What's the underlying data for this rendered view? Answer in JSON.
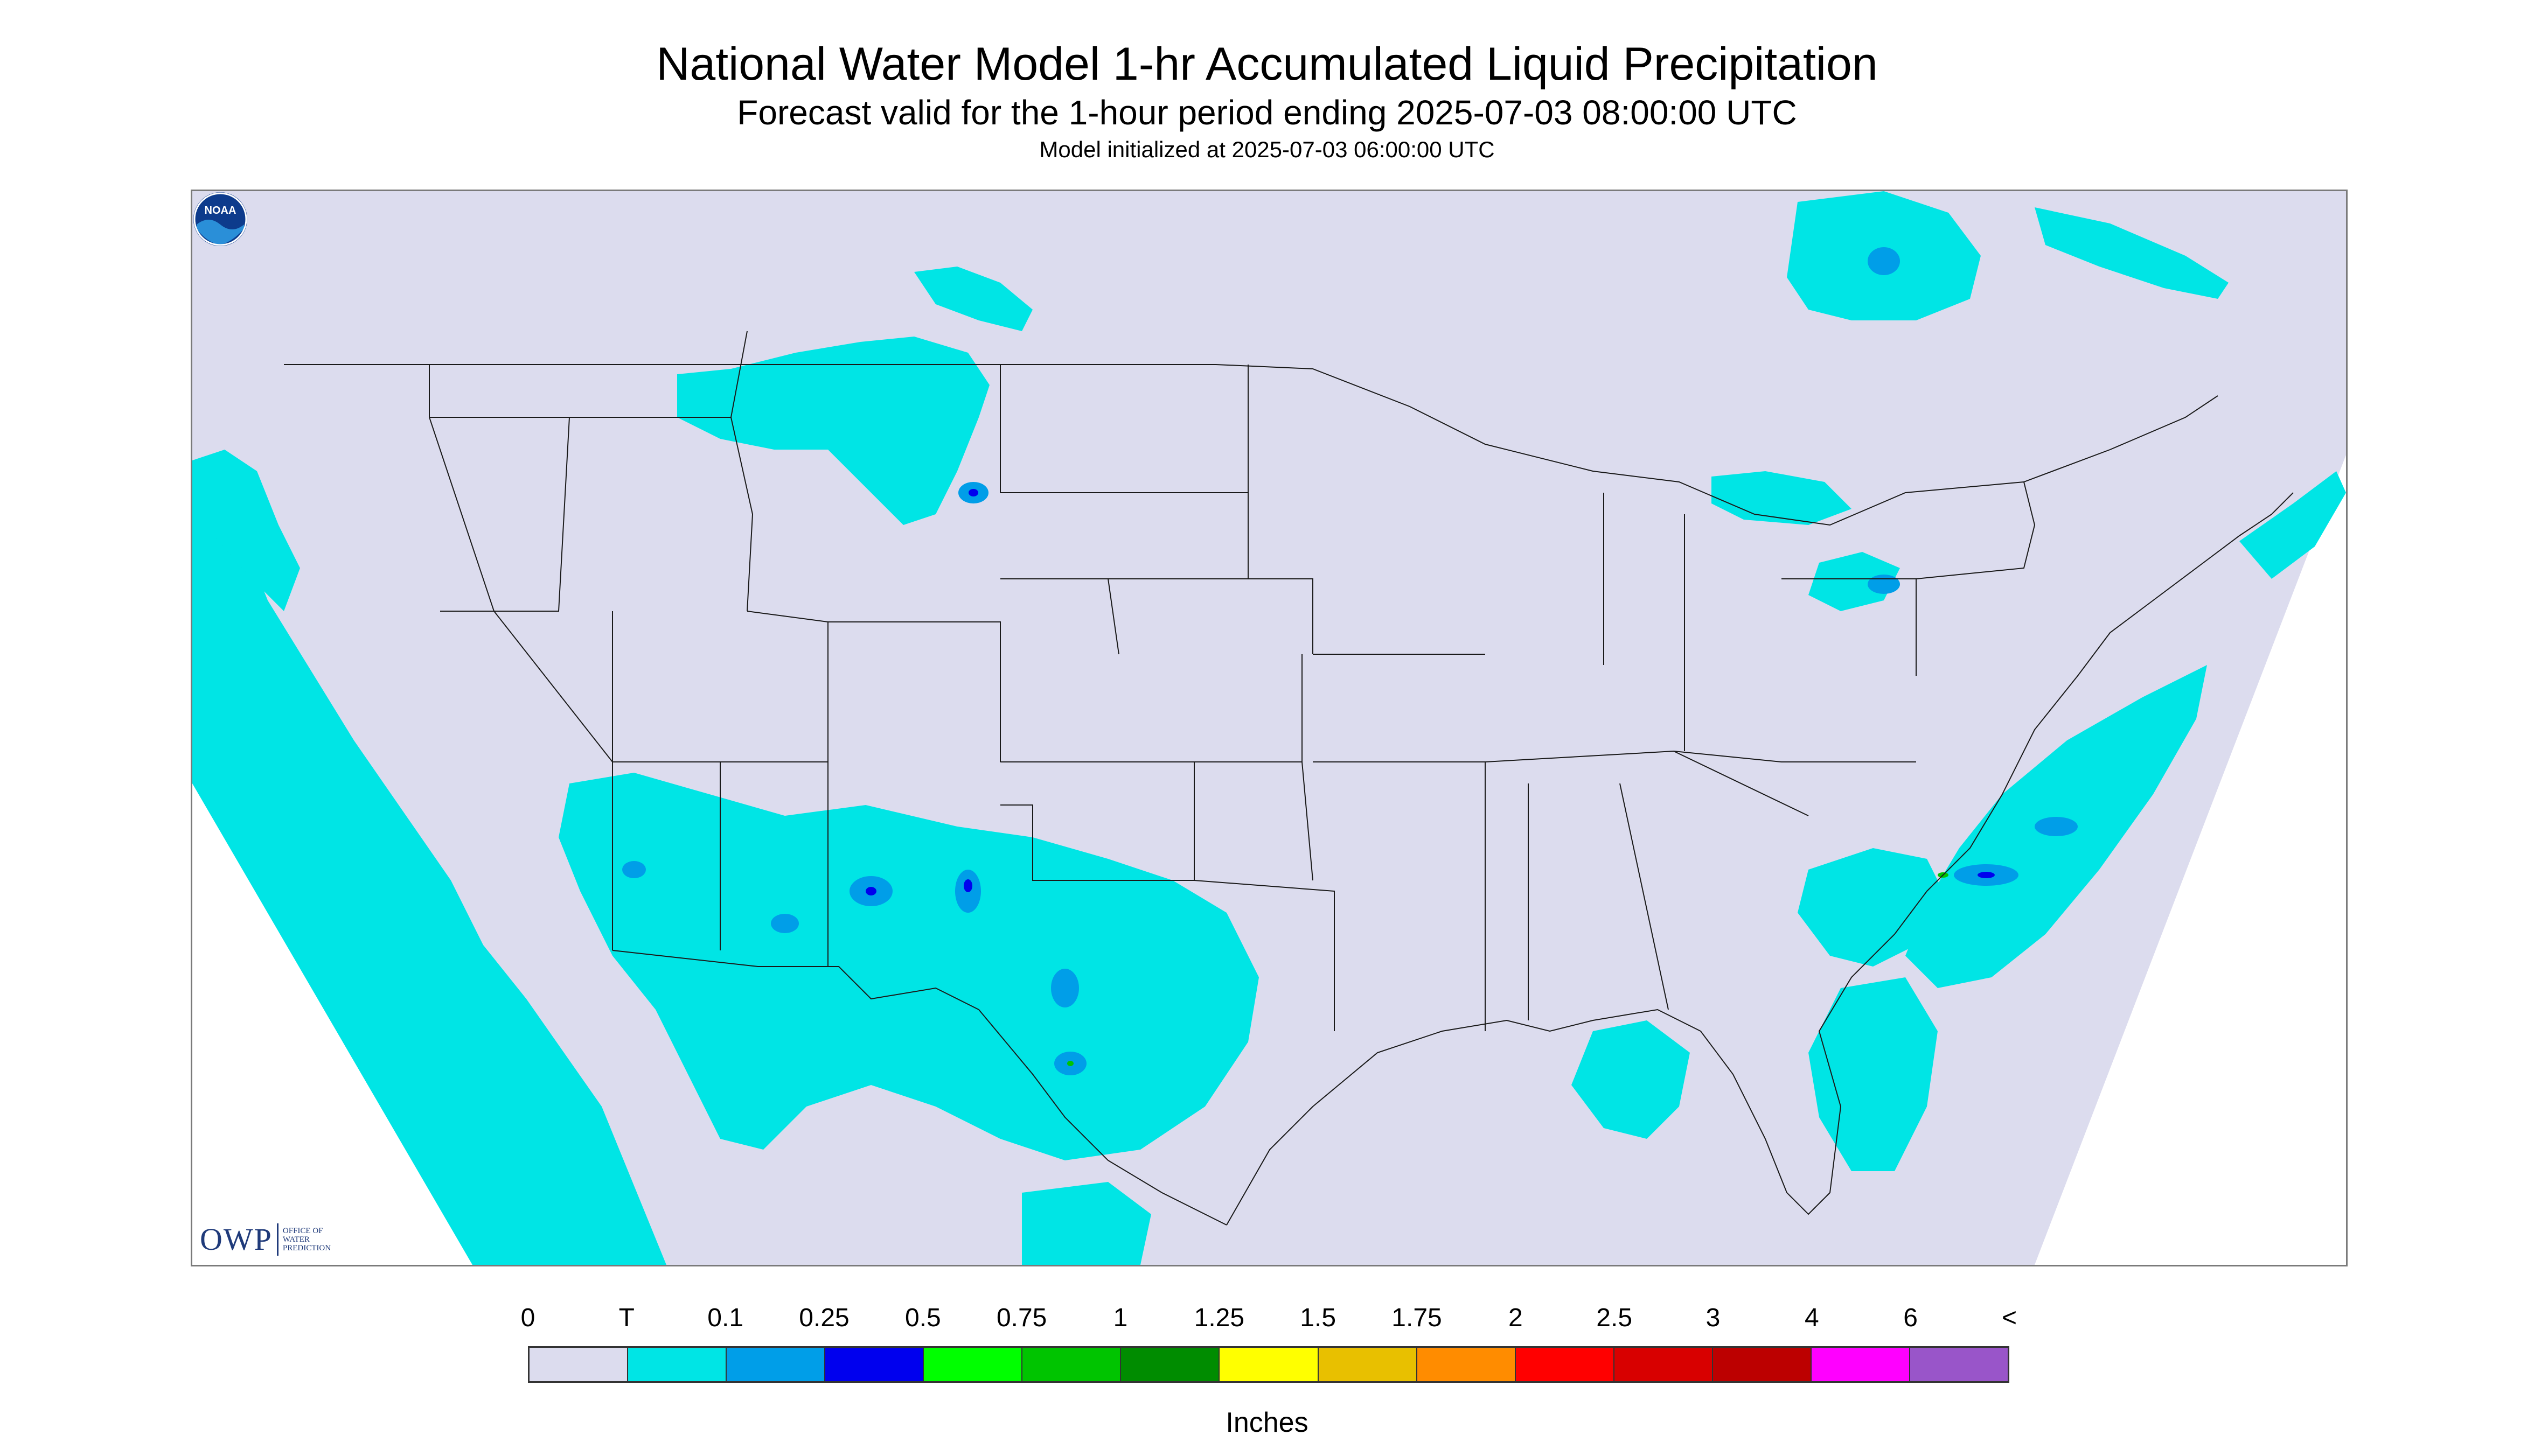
{
  "header": {
    "title": "National Water Model 1-hr Accumulated Liquid Precipitation",
    "subtitle": "Forecast valid for the 1-hour period ending 2025-07-03 08:00:00 UTC",
    "init": "Model initialized at 2025-07-03 06:00:00 UTC"
  },
  "logos": {
    "owp_letters": "OWP",
    "owp_line1": "OFFICE OF",
    "owp_line2": "WATER",
    "owp_line3": "PREDICTION",
    "noaa": "NOAA"
  },
  "legend": {
    "labels": [
      "0",
      "T",
      "0.1",
      "0.25",
      "0.5",
      "0.75",
      "1",
      "1.25",
      "1.5",
      "1.75",
      "2",
      "2.5",
      "3",
      "4",
      "6",
      "<"
    ],
    "colors": [
      "#dcdcee",
      "#00e5e5",
      "#009ee8",
      "#0000ee",
      "#00ff00",
      "#00c400",
      "#008c00",
      "#ffff00",
      "#e8c000",
      "#ff8c00",
      "#ff0000",
      "#d80000",
      "#bc0000",
      "#ff00ff",
      "#9955c9"
    ],
    "units": "Inches"
  },
  "map_colors": {
    "domain": "#dcdcee",
    "trace": "#00e5e5",
    "light": "#009ee8",
    "moderate": "#0000ee",
    "heavy": "#00c400",
    "boundary": "#1a1a1a"
  }
}
